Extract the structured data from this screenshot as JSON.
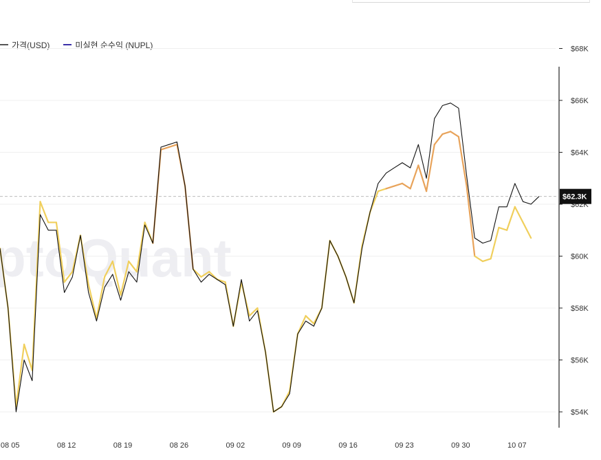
{
  "legend": {
    "price_label": "가격(USD)",
    "nupl_label": "미실현 순수익 (NUPL)",
    "price_color": "#555555",
    "nupl_color": "#3a2fa8"
  },
  "watermark": "CryptoQuant",
  "current_price_badge": "$62.3K",
  "chart_data": {
    "type": "line",
    "title": "",
    "xlabel": "",
    "ylabel": "",
    "x_ticks": [
      "08 05",
      "08 12",
      "08 19",
      "08 26",
      "09 02",
      "09 09",
      "09 16",
      "09 23",
      "09 30",
      "10 07"
    ],
    "x_tick_index": [
      1,
      8,
      15,
      22,
      29,
      36,
      43,
      50,
      57,
      64
    ],
    "y_ticks": [
      "$54K",
      "$56K",
      "$58K",
      "$60K",
      "$62K",
      "$64K",
      "$66K",
      "$68K"
    ],
    "y_tick_values": [
      54000,
      56000,
      58000,
      60000,
      62000,
      64000,
      66000,
      68000
    ],
    "ylim": [
      53500,
      68500
    ],
    "reference_line": 62300,
    "grid": true,
    "legend_position": "top-left",
    "x_start_date": "08 04",
    "series": [
      {
        "name": "가격(USD)",
        "color": "#111111",
        "values": [
          60300,
          58000,
          54000,
          56000,
          55200,
          61600,
          61000,
          61000,
          58600,
          59200,
          60800,
          58600,
          57500,
          58800,
          59300,
          58300,
          59400,
          59000,
          61200,
          60500,
          64200,
          64300,
          64400,
          62700,
          59500,
          59000,
          59300,
          59100,
          58900,
          57300,
          59100,
          57500,
          57900,
          56300,
          54000,
          54200,
          54700,
          57000,
          57500,
          57300,
          58000,
          60600,
          60000,
          59200,
          58200,
          60300,
          61700,
          62800,
          63200,
          63400,
          63600,
          63400,
          64300,
          63000,
          65300,
          65800,
          65900,
          65700,
          63100,
          60700,
          60500,
          60600,
          61900,
          61900,
          62800,
          62100,
          62000,
          62300
        ]
      },
      {
        "name": "",
        "color": "#f0cf5c",
        "values": [
          60300,
          58000,
          54200,
          56600,
          55600,
          62100,
          61300,
          61300,
          59000,
          59400,
          60800,
          58900,
          57600,
          59200,
          59800,
          58500,
          59800,
          59400,
          61300,
          60500,
          64100,
          64200,
          64300,
          62700,
          59500,
          59200,
          59400,
          59100,
          59000,
          57300,
          59000,
          57700,
          58000,
          56300,
          54000,
          54200,
          54800,
          57000,
          57700,
          57400,
          58000,
          60600,
          60000,
          59200,
          58200,
          60400,
          61700,
          62500,
          62600,
          62700,
          62800,
          62600,
          63500,
          62500,
          64300,
          64700,
          64800,
          64600,
          62700,
          60000,
          59800,
          59900,
          61100,
          61000,
          61900,
          61300,
          60700
        ]
      }
    ]
  }
}
